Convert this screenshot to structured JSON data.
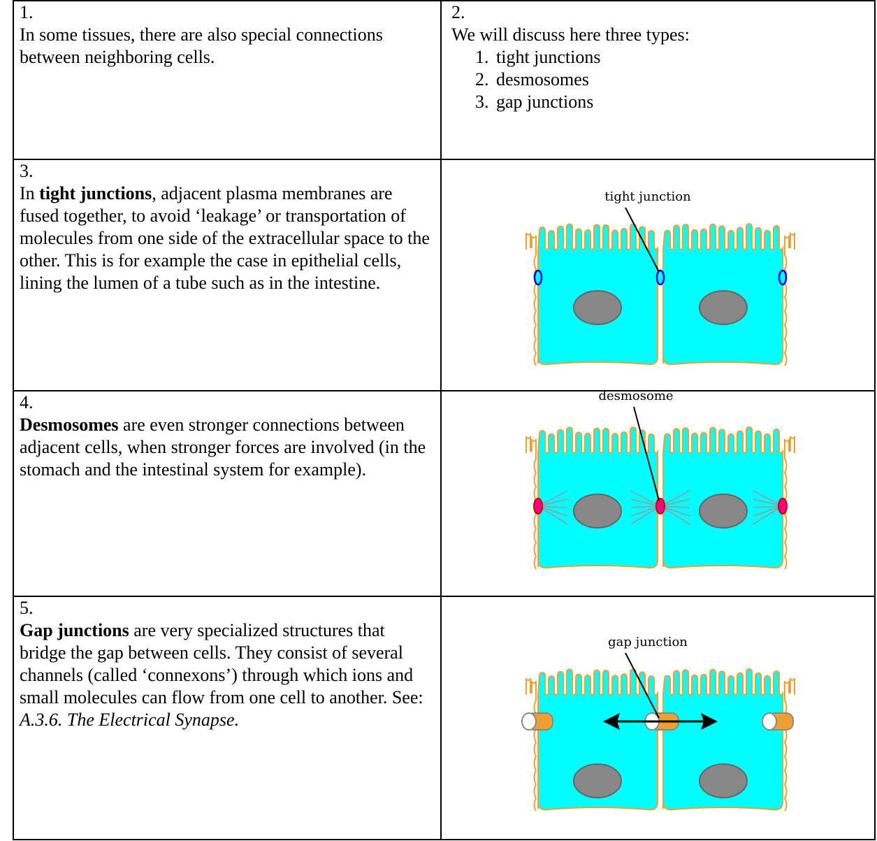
{
  "rows": [
    {
      "left": {
        "number": "1.",
        "text": "In some tissues, there are also special connections between neighboring cells."
      },
      "right": {
        "number": "2.",
        "intro": "We will discuss here three types:",
        "items": [
          {
            "marker": "1.",
            "text": "tight junctions"
          },
          {
            "marker": "2.",
            "text": "desmosomes"
          },
          {
            "marker": "3.",
            "text": "gap junctions"
          }
        ]
      }
    },
    {
      "left": {
        "number": "3.",
        "lead": "In ",
        "bold": "tight junctions",
        "text": ", adjacent plasma membranes are fused together, to avoid ‘leakage’ or transportation of molecules from one side of the extracellular space to the other. This is for example the case in epithelial cells, lining the lumen of a tube such as in the intestine."
      },
      "diagram": {
        "label": "tight junction"
      }
    },
    {
      "left": {
        "number": "4.",
        "bold": "Desmosomes",
        "text": " are even stronger connections between adjacent cells, when stronger forces are involved (in the stomach and the intestinal system for example)."
      },
      "diagram": {
        "label": "desmosome"
      }
    },
    {
      "left": {
        "number": "5.",
        "bold": "Gap junctions",
        "text": " are very specialized structures that bridge the gap between cells. They consist of several channels (called ‘connexons’) through which ions and small molecules can flow from one cell to another. See: ",
        "italic": "A.3.6. The Electrical Synapse."
      },
      "diagram": {
        "label": "gap junction"
      }
    }
  ]
}
